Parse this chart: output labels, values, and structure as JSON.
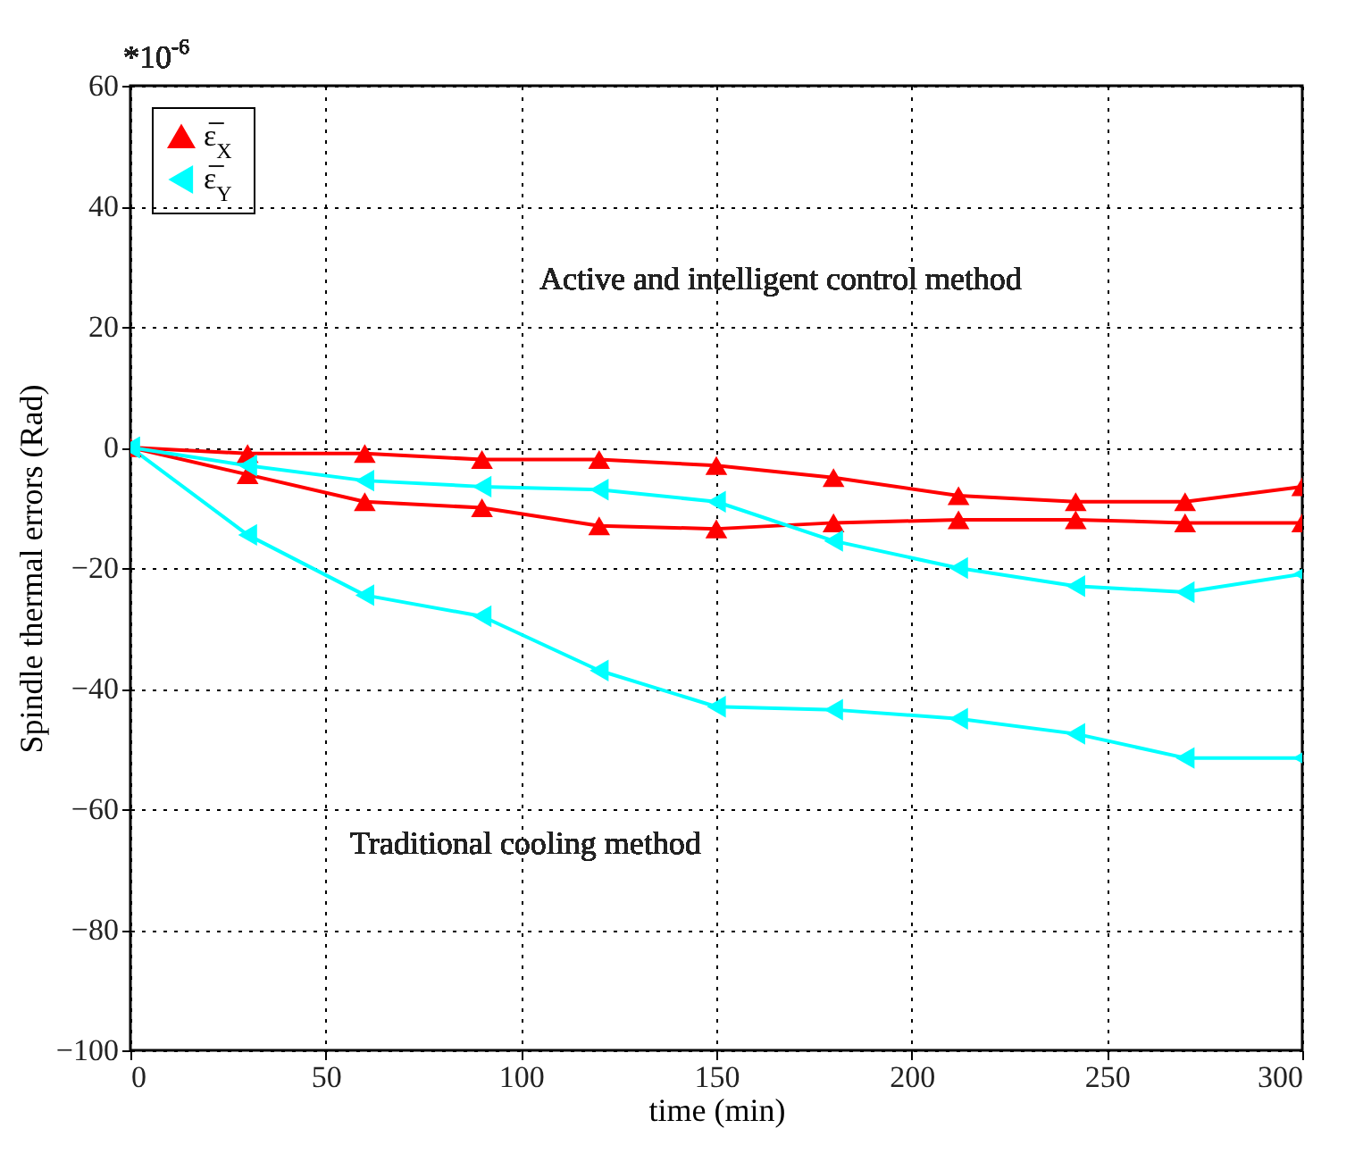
{
  "chart_data": {
    "type": "line",
    "xlabel": "time (min)",
    "ylabel": "Spindle thermal errors (Rad)",
    "x": [
      0,
      30,
      60,
      90,
      120,
      150,
      180,
      212,
      242,
      270,
      300
    ],
    "series": [
      {
        "name": "ε̅$_{X}$",
        "color": "#ff0000",
        "marker": "triangle",
        "values": [
          0,
          -1,
          -1,
          -2,
          -2,
          -3,
          -5,
          -8,
          -9,
          -9,
          -6.5
        ]
      },
      {
        "color": "#ff0000",
        "marker": "triangle",
        "values": [
          0,
          -4.5,
          -9,
          -10,
          -13,
          -13.5,
          -12.5,
          -12,
          -12,
          -12.5,
          -12.5
        ]
      },
      {
        "name": "ε̅$_{Y}$",
        "color": "#00ffff",
        "marker": "triangle-left",
        "values": [
          0,
          -3,
          -5.5,
          -6.5,
          -7,
          -9,
          -15.5,
          -20,
          -23,
          -24,
          -21
        ]
      },
      {
        "color": "#00ffff",
        "marker": "triangle-left",
        "values": [
          0,
          -14.5,
          -24.5,
          -28,
          -37,
          -43,
          -43.5,
          -45,
          -47.5,
          -51.5,
          -51.5
        ]
      }
    ],
    "xlim": [
      0,
      300
    ],
    "xticks": [
      0,
      50,
      100,
      150,
      200,
      250,
      300
    ],
    "ylim": [
      -100,
      60
    ],
    "yticks": [
      -100,
      -80,
      -60,
      -40,
      -20,
      0,
      20,
      40,
      60
    ],
    "grid": true,
    "legend": "top left",
    "annotations": [
      "*10$^{-6}$",
      "Active and intelligent control method",
      "Traditional cooling method"
    ]
  }
}
